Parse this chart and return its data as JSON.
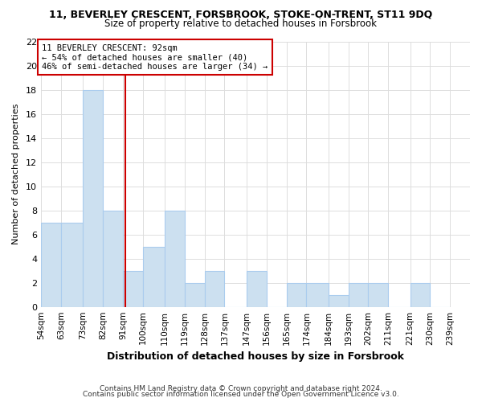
{
  "title1": "11, BEVERLEY CRESCENT, FORSBROOK, STOKE-ON-TRENT, ST11 9DQ",
  "title2": "Size of property relative to detached houses in Forsbrook",
  "xlabel": "Distribution of detached houses by size in Forsbrook",
  "ylabel": "Number of detached properties",
  "bar_color": "#cce0f0",
  "bar_edge_color": "#aaccee",
  "bin_labels": [
    "54sqm",
    "63sqm",
    "73sqm",
    "82sqm",
    "91sqm",
    "100sqm",
    "110sqm",
    "119sqm",
    "128sqm",
    "137sqm",
    "147sqm",
    "156sqm",
    "165sqm",
    "174sqm",
    "184sqm",
    "193sqm",
    "202sqm",
    "211sqm",
    "221sqm",
    "230sqm",
    "239sqm"
  ],
  "bin_edges": [
    54,
    63,
    73,
    82,
    91,
    100,
    110,
    119,
    128,
    137,
    147,
    156,
    165,
    174,
    184,
    193,
    202,
    211,
    221,
    230,
    239
  ],
  "bar_heights": [
    7,
    7,
    18,
    8,
    3,
    5,
    8,
    2,
    3,
    0,
    3,
    0,
    2,
    2,
    1,
    2,
    2,
    0,
    2,
    0
  ],
  "vline_x": 92,
  "vline_color": "#cc0000",
  "annotation_text": "11 BEVERLEY CRESCENT: 92sqm\n← 54% of detached houses are smaller (40)\n46% of semi-detached houses are larger (34) →",
  "ylim": [
    0,
    22
  ],
  "yticks": [
    0,
    2,
    4,
    6,
    8,
    10,
    12,
    14,
    16,
    18,
    20,
    22
  ],
  "annotation_box_color": "#ffffff",
  "annotation_box_edge": "#cc0000",
  "footer1": "Contains HM Land Registry data © Crown copyright and database right 2024.",
  "footer2": "Contains public sector information licensed under the Open Government Licence v3.0.",
  "background_color": "#ffffff",
  "grid_color": "#dddddd"
}
